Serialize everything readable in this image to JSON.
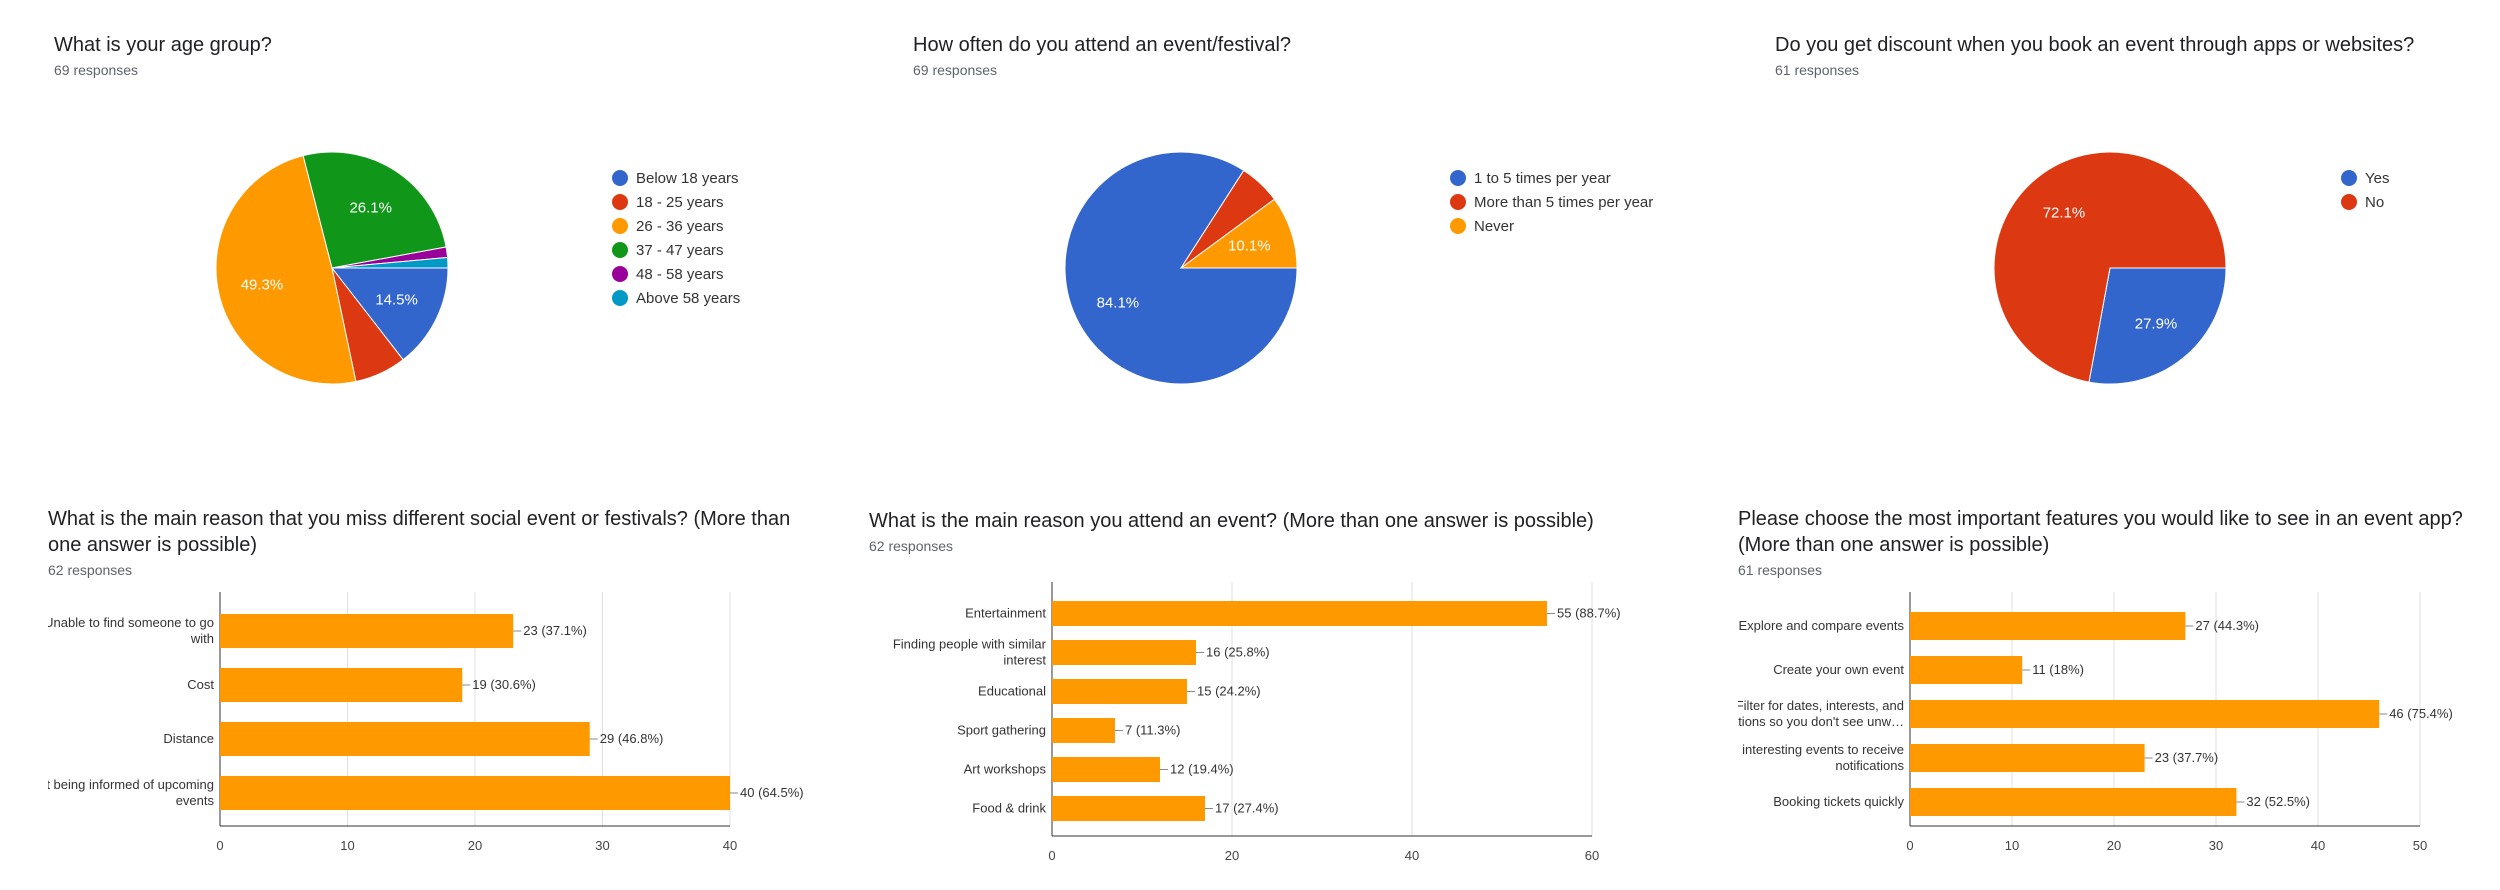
{
  "panels": [
    {
      "title": "What is your age group?",
      "responses": "69 responses",
      "chart_data": {
        "type": "pie",
        "slices": [
          {
            "label": "Below 18 years",
            "value": 14.5,
            "pct_label": "14.5%",
            "color": "#3366cc"
          },
          {
            "label": "18 - 25 years",
            "value": 7.2,
            "pct_label": "",
            "color": "#dc3912"
          },
          {
            "label": "26 - 36 years",
            "value": 49.3,
            "pct_label": "49.3%",
            "color": "#ff9900"
          },
          {
            "label": "37 - 47 years",
            "value": 26.1,
            "pct_label": "26.1%",
            "color": "#109618"
          },
          {
            "label": "48 - 58 years",
            "value": 1.45,
            "pct_label": "",
            "color": "#990099"
          },
          {
            "label": "Above 58 years",
            "value": 1.45,
            "pct_label": "",
            "color": "#0099c6"
          }
        ]
      }
    },
    {
      "title": "How often do you attend an event/festival?",
      "responses": "69 responses",
      "chart_data": {
        "type": "pie",
        "slices": [
          {
            "label": "1 to 5 times per year",
            "value": 84.1,
            "pct_label": "84.1%",
            "color": "#3366cc"
          },
          {
            "label": "More than 5 times per year",
            "value": 5.8,
            "pct_label": "",
            "color": "#dc3912"
          },
          {
            "label": "Never",
            "value": 10.1,
            "pct_label": "10.1%",
            "color": "#ff9900"
          }
        ]
      }
    },
    {
      "title": "Do you get discount when you book an event through apps or websites?",
      "responses": "61 responses",
      "chart_data": {
        "type": "pie",
        "slices": [
          {
            "label": "Yes",
            "value": 27.9,
            "pct_label": "27.9%",
            "color": "#3366cc"
          },
          {
            "label": "No",
            "value": 72.1,
            "pct_label": "72.1%",
            "color": "#dc3912"
          }
        ]
      }
    },
    {
      "title": "What is the main reason that you miss different social event or festivals? (More than one answer is possible)",
      "responses": "62 responses",
      "chart_data": {
        "type": "bar",
        "orientation": "horizontal",
        "color": "#ff9900",
        "categories": [
          [
            "Unable to find someone to go",
            "with"
          ],
          [
            "Cost"
          ],
          [
            "Distance"
          ],
          [
            "Not being informed of upcoming",
            "events"
          ]
        ],
        "values": [
          23,
          19,
          29,
          40
        ],
        "value_labels": [
          "23 (37.1%)",
          "19 (30.6%)",
          "29 (46.8%)",
          "40 (64.5%)"
        ],
        "xlim": [
          0,
          40
        ],
        "xticks": [
          0,
          10,
          20,
          30,
          40
        ]
      }
    },
    {
      "title": "What is the main reason you attend an event? (More than one answer is possible)",
      "responses": "62 responses",
      "chart_data": {
        "type": "bar",
        "orientation": "horizontal",
        "color": "#ff9900",
        "categories": [
          [
            "Entertainment"
          ],
          [
            "Finding people with similar",
            "interest"
          ],
          [
            "Educational"
          ],
          [
            "Sport gathering"
          ],
          [
            "Art workshops"
          ],
          [
            "Food & drink"
          ]
        ],
        "values": [
          55,
          16,
          15,
          7,
          12,
          17
        ],
        "value_labels": [
          "55 (88.7%)",
          "16 (25.8%)",
          "15 (24.2%)",
          "7 (11.3%)",
          "12 (19.4%)",
          "17 (27.4%)"
        ],
        "xlim": [
          0,
          60
        ],
        "xticks": [
          0,
          20,
          40,
          60
        ]
      }
    },
    {
      "title": "Please choose the most important features you would like to see in an event app? (More than one answer is possible)",
      "responses": "61 responses",
      "chart_data": {
        "type": "bar",
        "orientation": "horizontal",
        "color": "#ff9900",
        "categories": [
          [
            "Explore and compare events"
          ],
          [
            "Create your own event"
          ],
          [
            "Filter for dates, interests, and",
            "locations so you don't see unw…"
          ],
          [
            "Add interesting events to receive",
            "notifications"
          ],
          [
            "Booking tickets quickly"
          ]
        ],
        "values": [
          27,
          11,
          46,
          23,
          32
        ],
        "value_labels": [
          "27 (44.3%)",
          "11 (18%)",
          "46 (75.4%)",
          "23 (37.7%)",
          "32 (52.5%)"
        ],
        "xlim": [
          0,
          50
        ],
        "xticks": [
          0,
          10,
          20,
          30,
          40,
          50
        ]
      }
    }
  ]
}
